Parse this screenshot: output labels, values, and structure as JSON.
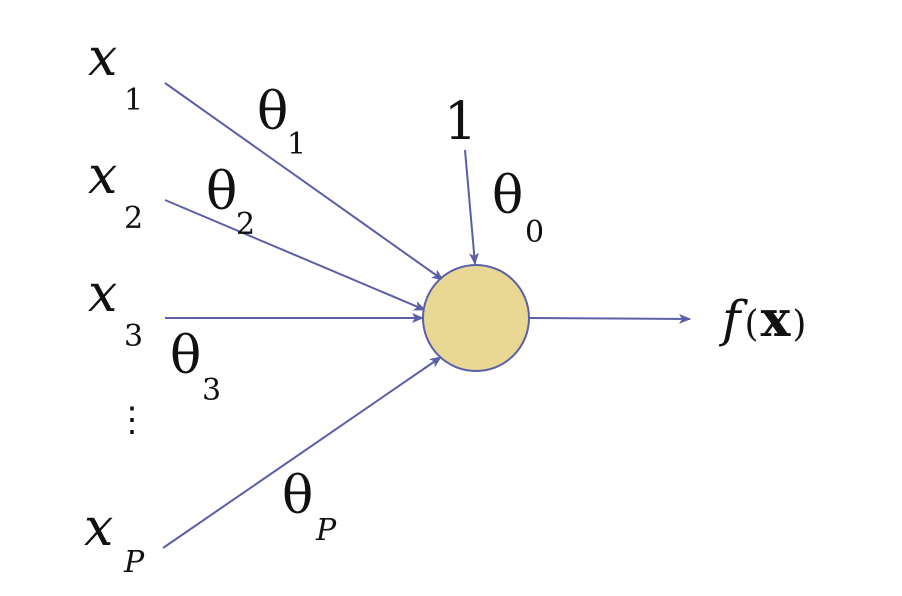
{
  "diagram": {
    "colors": {
      "edge": "#5a5fa8",
      "node_fill": "#e9d894",
      "node_stroke": "#5a5fa8",
      "text": "#111111"
    },
    "inputs": [
      {
        "var": "x",
        "sub": "1",
        "weight": "θ",
        "weight_sub": "1"
      },
      {
        "var": "x",
        "sub": "2",
        "weight": "θ",
        "weight_sub": "2"
      },
      {
        "var": "x",
        "sub": "3",
        "weight": "θ",
        "weight_sub": "3"
      },
      {
        "var": "x",
        "sub": "P",
        "weight": "θ",
        "weight_sub": "P"
      }
    ],
    "ellipsis": "⋮",
    "bias": {
      "value": "1",
      "weight": "θ",
      "weight_sub": "0"
    },
    "output": {
      "func": "f",
      "open": "(",
      "arg": "x",
      "close": ")"
    }
  }
}
